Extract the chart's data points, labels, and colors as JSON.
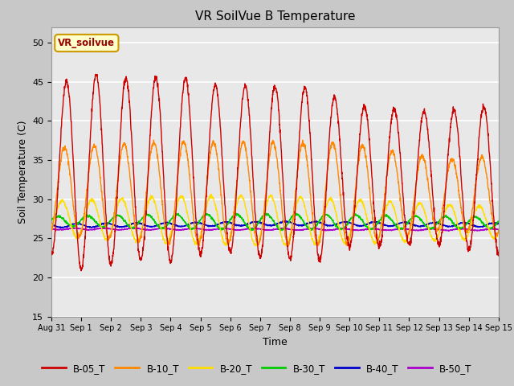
{
  "title": "VR SoilVue B Temperature",
  "xlabel": "Time",
  "ylabel": "Soil Temperature (C)",
  "ylim": [
    15,
    52
  ],
  "yticks": [
    15,
    20,
    25,
    30,
    35,
    40,
    45,
    50
  ],
  "legend_label": "VR_soilvue",
  "series_colors": {
    "B-05_T": "#cc0000",
    "B-10_T": "#ff8800",
    "B-20_T": "#ffdd00",
    "B-30_T": "#00cc00",
    "B-40_T": "#0000cc",
    "B-50_T": "#aa00cc"
  },
  "fig_bg": "#c8c8c8",
  "plot_bg": "#e8e8e8",
  "tick_labels": [
    "Aug 31",
    "Sep 1",
    "Sep 2",
    "Sep 3",
    "Sep 4",
    "Sep 5",
    "Sep 6",
    "Sep 7",
    "Sep 8",
    "Sep 9",
    "Sep 10",
    "Sep 11",
    "Sep 12",
    "Sep 13",
    "Sep 14",
    "Sep 15"
  ]
}
